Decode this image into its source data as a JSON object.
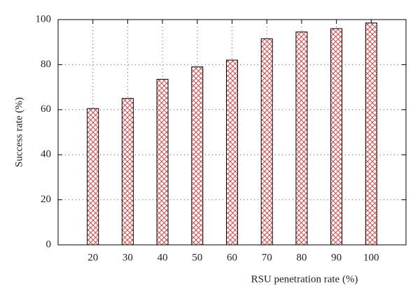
{
  "chart_data": {
    "type": "bar",
    "x_label": "RSU penetration rate (%)",
    "y_label": "Success rate (%)",
    "x": [
      20,
      30,
      40,
      50,
      60,
      70,
      80,
      90,
      100
    ],
    "values": [
      60.5,
      65,
      73.5,
      79,
      82,
      91.5,
      94.5,
      96,
      98.5
    ],
    "color": "#e03030",
    "hatch": "crosshatch",
    "xlim": [
      10,
      110
    ],
    "xticks": [
      20,
      30,
      40,
      50,
      60,
      70,
      80,
      90,
      100
    ],
    "ylim": [
      0,
      100
    ],
    "yticks": [
      0,
      20,
      40,
      60,
      80,
      100
    ],
    "grid": true
  }
}
